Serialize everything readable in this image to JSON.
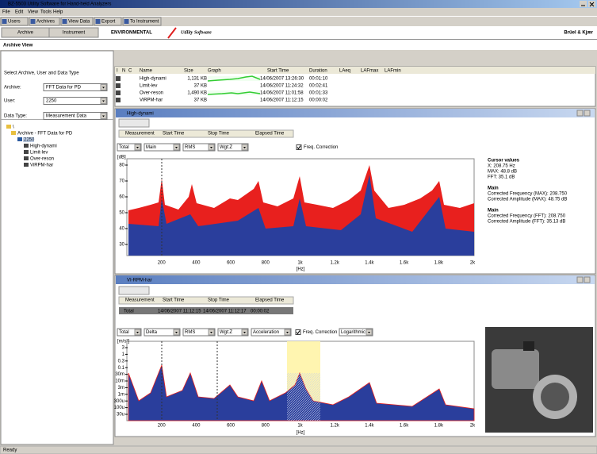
{
  "window": {
    "title": "BZ-5503 Utility Software for Hand-held Analyzers"
  },
  "menu": [
    "File",
    "Edit",
    "View",
    "Tools",
    "Help"
  ],
  "toolbar": [
    "Users",
    "Archives",
    "View Data",
    "Export",
    "To Instrument"
  ],
  "tabs": [
    "Archive",
    "Instrument"
  ],
  "banner": {
    "product": "ENVIRONMENTAL",
    "subtitle": "Utility Software",
    "brand": "Brüel & Kjær"
  },
  "view_title": "Archive View",
  "sidebar": {
    "heading": "Select Archive, User and Data Type",
    "fields": [
      {
        "label": "Archive:",
        "value": "FFT Data for PD"
      },
      {
        "label": "User:",
        "value": "2250"
      },
      {
        "label": "Data Type:",
        "value": "Measurement Data"
      }
    ],
    "tree": [
      "\\",
      "Archive - FFT Data for PD",
      "2250",
      "High-dynami",
      "Limit-lev",
      "Over-reson",
      "ViRPM-har"
    ]
  },
  "archive_table": {
    "columns": [
      "I",
      "N",
      "C",
      "Name",
      "Size",
      "Graph",
      "Start Time",
      "Duration",
      "LAeq",
      "LAFmax",
      "LAFmin"
    ],
    "rows": [
      [
        "High-dynami",
        "1,131 KB",
        "14/06/2007 13:26:30",
        "00:01:10"
      ],
      [
        "Limit-lev",
        "37 KB",
        "14/06/2007 11:24:32",
        "00:02:41"
      ],
      [
        "Over-reson",
        "1,490 KB",
        "14/06/2007 11:01:58",
        "00:01:33"
      ],
      [
        "ViRPM-har",
        "37 KB",
        "14/06/2007 11:12:15",
        "00:00:02"
      ]
    ]
  },
  "panels": [
    {
      "title": "High-dynami",
      "table_columns": [
        "Measurement",
        "Start Time",
        "Stop Time",
        "Elapsed Time"
      ],
      "controls": [
        "Total",
        "Main",
        "RMS",
        "Wgt:Z"
      ],
      "checkbox": "Freq. Correction",
      "y_unit": "[dB]",
      "y_ticks": [
        "80",
        "70",
        "60",
        "50",
        "40",
        "30"
      ],
      "x_ticks": [
        "200",
        "400",
        "600",
        "800",
        "1k",
        "1.2k",
        "1.4k",
        "1.6k",
        "1.8k",
        "2k"
      ],
      "x_unit": "[Hz]",
      "info": [
        "Cursor values",
        "X: 208.75 Hz",
        "MAX: 48.8 dB",
        "FFT: 35.1 dB",
        "Main",
        "Corrected Frequency (MAX): 208.750",
        "Corrected Amplitude (MAX): 48.75 dB",
        "Main",
        "Corrected Frequency (FFT): 208.750",
        "Corrected Amplitude (FFT): 35.13 dB"
      ]
    },
    {
      "title": "VI-RPM-har",
      "table_columns": [
        "Measurement",
        "Start Time",
        "Stop Time",
        "Elapsed Time"
      ],
      "row": [
        "Total",
        "14/06/2007 11:12:15",
        "14/06/2007 11:12:17",
        "00:00:02"
      ],
      "controls": [
        "Total",
        "Delta",
        "RMS",
        "Wgt:Z",
        "Acceleration"
      ],
      "checkbox": "Freq. Correction",
      "scale": "Logarithmic",
      "y_unit": "[m/s²]",
      "y_ticks": [
        "3",
        "1",
        "0.3",
        "0.1",
        "30m",
        "10m",
        "3m",
        "1m",
        "300u",
        "100u",
        "30u"
      ],
      "x_ticks": [
        "200",
        "400",
        "600",
        "800",
        "1k",
        "1.2k",
        "1.4k",
        "1.6k",
        "1.8k",
        "2k"
      ],
      "x_unit": "[Hz]"
    }
  ],
  "status": "Ready"
}
